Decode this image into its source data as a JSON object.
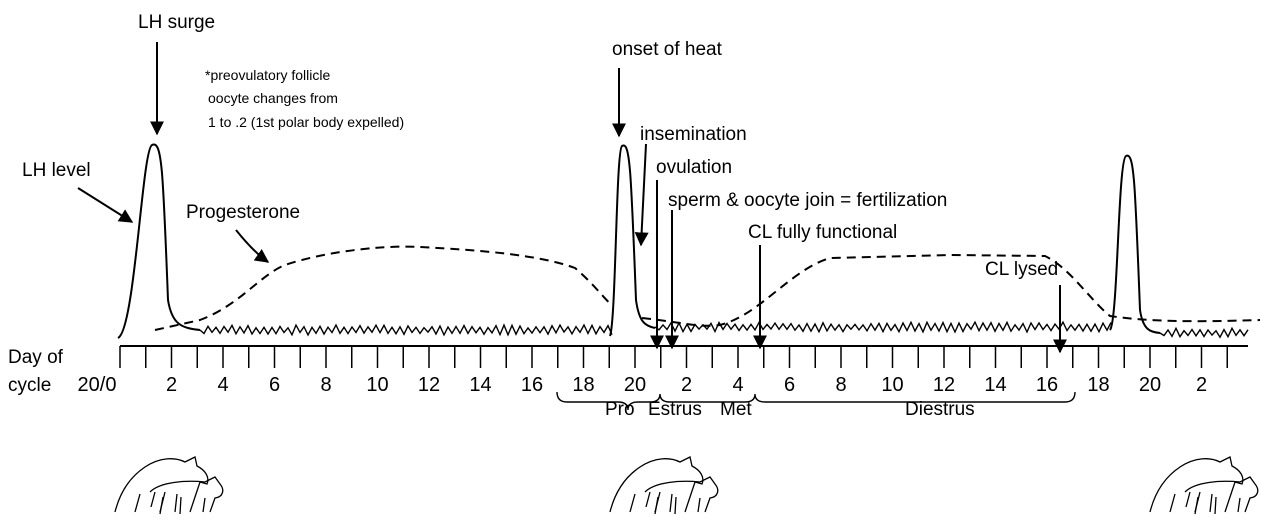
{
  "labels": {
    "lh_surge": "LH surge",
    "lh_level": "LH level",
    "progesterone": "Progesterone",
    "onset_of_heat": "onset of heat",
    "insemination": "insemination",
    "ovulation": "ovulation",
    "fertilization": "sperm & oocyte join = fertilization",
    "cl_functional": "CL fully functional",
    "cl_lysed": "CL lysed"
  },
  "note": [
    "*preovulatory follicle",
    "oocyte changes from",
    "1  to .2  (1st polar body expelled)"
  ],
  "axis": {
    "title": [
      "Day of",
      "cycle"
    ],
    "ticks": [
      "20/0",
      "2",
      "4",
      "6",
      "8",
      "10",
      "12",
      "14",
      "16",
      "18",
      "20",
      "2",
      "4",
      "6",
      "8",
      "10",
      "12",
      "14",
      "16",
      "18",
      "20",
      "2"
    ]
  },
  "phases": [
    "Pro",
    "Estrus",
    "Met",
    "Diestrus"
  ]
}
